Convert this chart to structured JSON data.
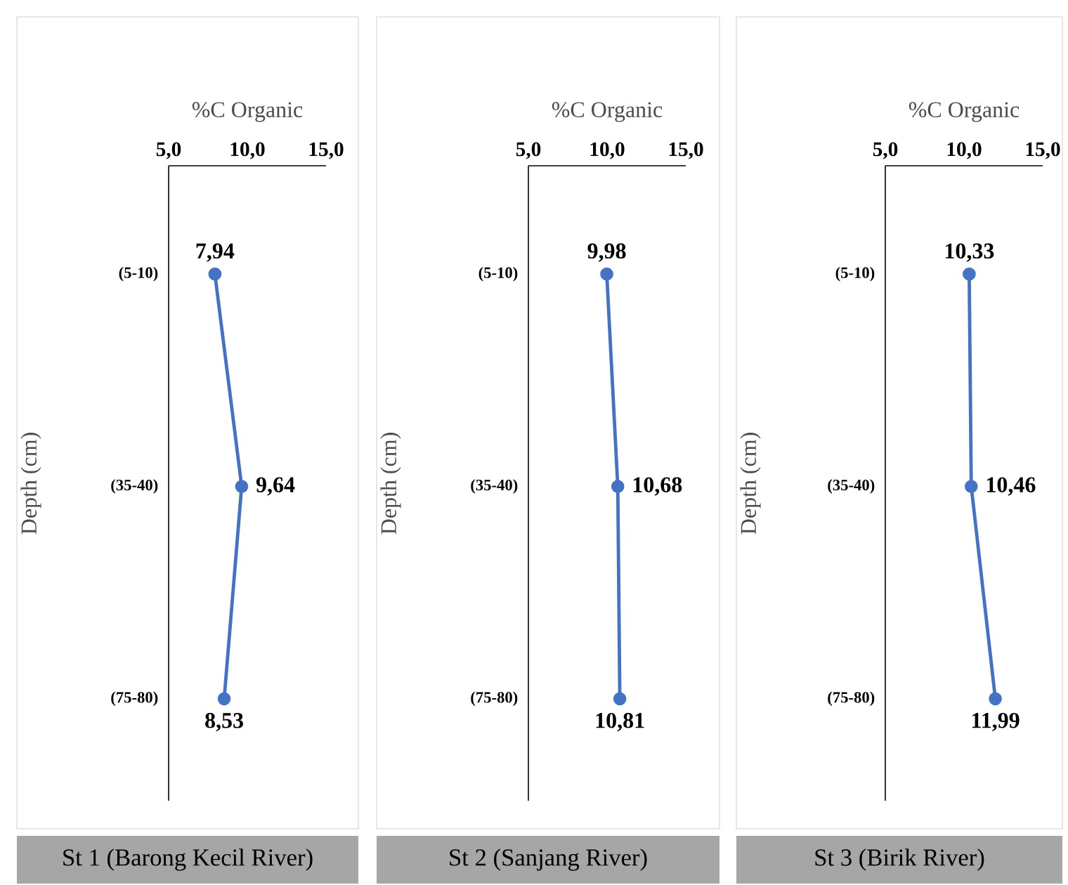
{
  "chart_data": [
    {
      "type": "line",
      "orientation": "horizontal",
      "xlabel": "%C Organic",
      "ylabel": "Depth (cm)",
      "categories": [
        "(5-10)",
        "(35-40)",
        "(75-80)"
      ],
      "values": [
        7.94,
        9.64,
        8.53
      ],
      "value_labels": [
        "7,94",
        "9,64",
        "8,53"
      ],
      "color": "#4472c4",
      "marker": "circle",
      "xlim": [
        5,
        15
      ],
      "xticks": [
        {
          "value": 5,
          "label": "5,0"
        },
        {
          "value": 10,
          "label": "10,0"
        },
        {
          "value": 15,
          "label": "15,0"
        }
      ],
      "annotations": [
        "St 1 (Barong Kecil River)"
      ]
    },
    {
      "type": "line",
      "orientation": "horizontal",
      "xlabel": "%C Organic",
      "ylabel": "Depth (cm)",
      "categories": [
        "(5-10)",
        "(35-40)",
        "(75-80)"
      ],
      "values": [
        9.98,
        10.68,
        10.81
      ],
      "value_labels": [
        "9,98",
        "10,68",
        "10,81"
      ],
      "color": "#4472c4",
      "marker": "circle",
      "xlim": [
        5,
        15
      ],
      "xticks": [
        {
          "value": 5,
          "label": "5,0"
        },
        {
          "value": 10,
          "label": "10,0"
        },
        {
          "value": 15,
          "label": "15,0"
        }
      ],
      "annotations": [
        "St 2 (Sanjang River)"
      ]
    },
    {
      "type": "line",
      "orientation": "horizontal",
      "xlabel": "%C Organic",
      "ylabel": "Depth (cm)",
      "categories": [
        "(5-10)",
        "(35-40)",
        "(75-80)"
      ],
      "values": [
        10.33,
        10.46,
        11.99
      ],
      "value_labels": [
        "10,33",
        "10,46",
        "11,99"
      ],
      "color": "#4472c4",
      "marker": "circle",
      "xlim": [
        5,
        15
      ],
      "xticks": [
        {
          "value": 5,
          "label": "5,0"
        },
        {
          "value": 10,
          "label": "10,0"
        },
        {
          "value": 15,
          "label": "15,0"
        }
      ],
      "annotations": [
        "St 3 (Birik River)"
      ]
    }
  ]
}
